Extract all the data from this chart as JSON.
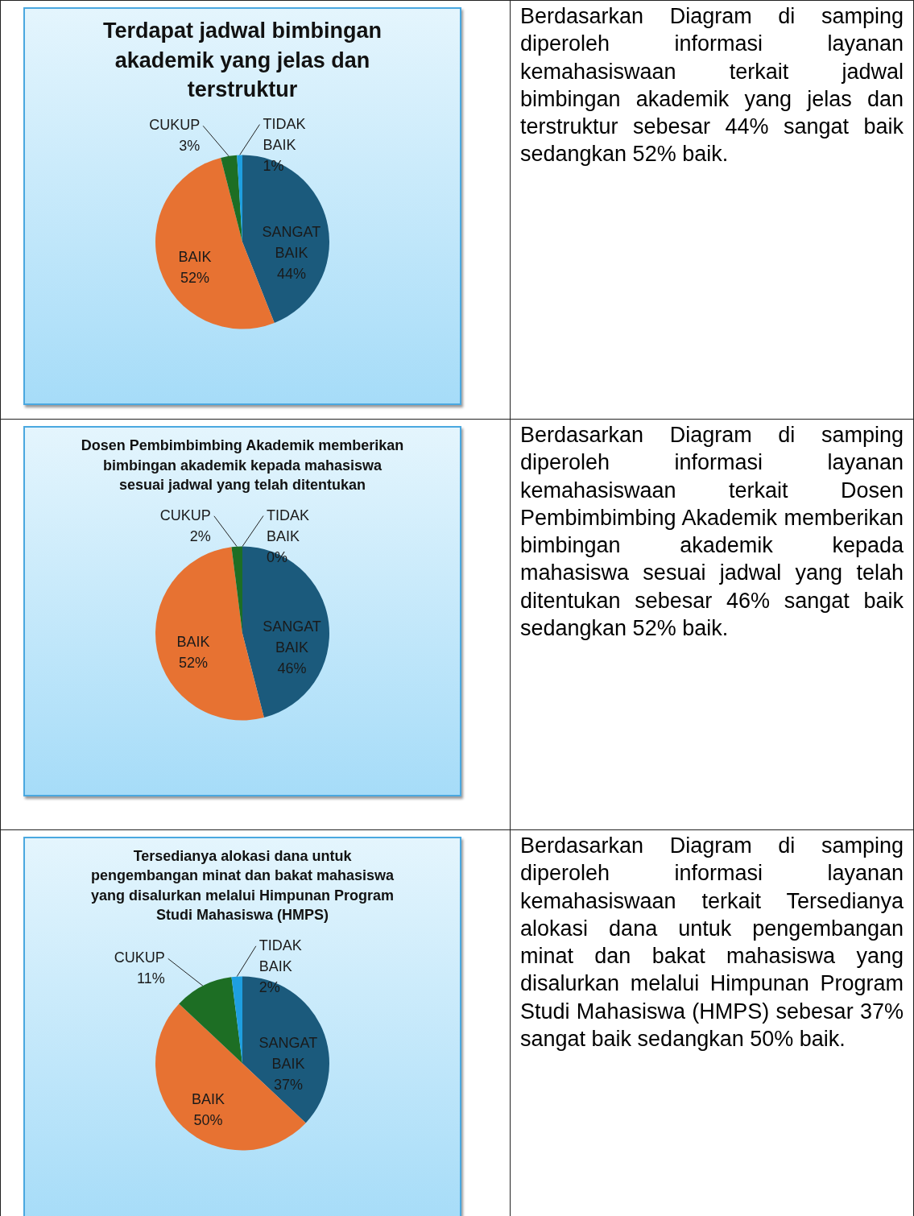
{
  "chart_data": [
    {
      "type": "pie",
      "title": "Terdapat jadwal bimbingan akademik yang jelas dan terstruktur",
      "categories": [
        "SANGAT BAIK",
        "BAIK",
        "CUKUP",
        "TIDAK BAIK"
      ],
      "values": [
        44,
        52,
        3,
        1
      ],
      "colors": [
        "#1b5a7c",
        "#e77232",
        "#1d6e24",
        "#1e9fe0"
      ],
      "value_labels": [
        "44%",
        "52%",
        "3%",
        "1%"
      ]
    },
    {
      "type": "other",
      "annotations": [
        "Berdasarkan Diagram di samping diperoleh informasi layanan kemahasiswaan terkait jadwal bimbingan akademik yang jelas dan terstruktur sebesar 44% sangat baik sedangkan 52% baik."
      ]
    },
    {
      "type": "pie",
      "title": "Dosen Pembimbimbing Akademik memberikan bimbingan akademik kepada mahasiswa sesuai jadwal yang telah ditentukan",
      "categories": [
        "SANGAT BAIK",
        "BAIK",
        "CUKUP",
        "TIDAK BAIK"
      ],
      "values": [
        46,
        52,
        2,
        0
      ],
      "colors": [
        "#1b5a7c",
        "#e77232",
        "#1d6e24",
        "#1e9fe0"
      ],
      "value_labels": [
        "46%",
        "52%",
        "2%",
        "0%"
      ]
    },
    {
      "type": "other",
      "annotations": [
        "Berdasarkan Diagram di samping diperoleh informasi layanan kemahasiswaan terkait Dosen Pembimbimbing Akademik memberikan bimbingan akademik kepada mahasiswa sesuai jadwal yang telah ditentukan sebesar 46% sangat baik sedangkan 52% baik."
      ]
    },
    {
      "type": "pie",
      "title": "Tersedianya alokasi dana untuk pengembangan minat dan bakat mahasiswa yang disalurkan melalui Himpunan Program Studi Mahasiswa (HMPS)",
      "categories": [
        "SANGAT BAIK",
        "BAIK",
        "CUKUP",
        "TIDAK BAIK"
      ],
      "values": [
        37,
        50,
        11,
        2
      ],
      "colors": [
        "#1b5a7c",
        "#e77232",
        "#1d6e24",
        "#1e9fe0"
      ],
      "value_labels": [
        "37%",
        "50%",
        "11%",
        "2%"
      ]
    },
    {
      "type": "other",
      "annotations": [
        "Berdasarkan Diagram di samping diperoleh informasi layanan kemahasiswaan terkait Tersedianya alokasi dana untuk pengembangan minat dan bakat mahasiswa yang disalurkan melalui Himpunan Program Studi Mahasiswa (HMPS) sebesar 37% sangat baik sedangkan 50% baik."
      ]
    }
  ]
}
